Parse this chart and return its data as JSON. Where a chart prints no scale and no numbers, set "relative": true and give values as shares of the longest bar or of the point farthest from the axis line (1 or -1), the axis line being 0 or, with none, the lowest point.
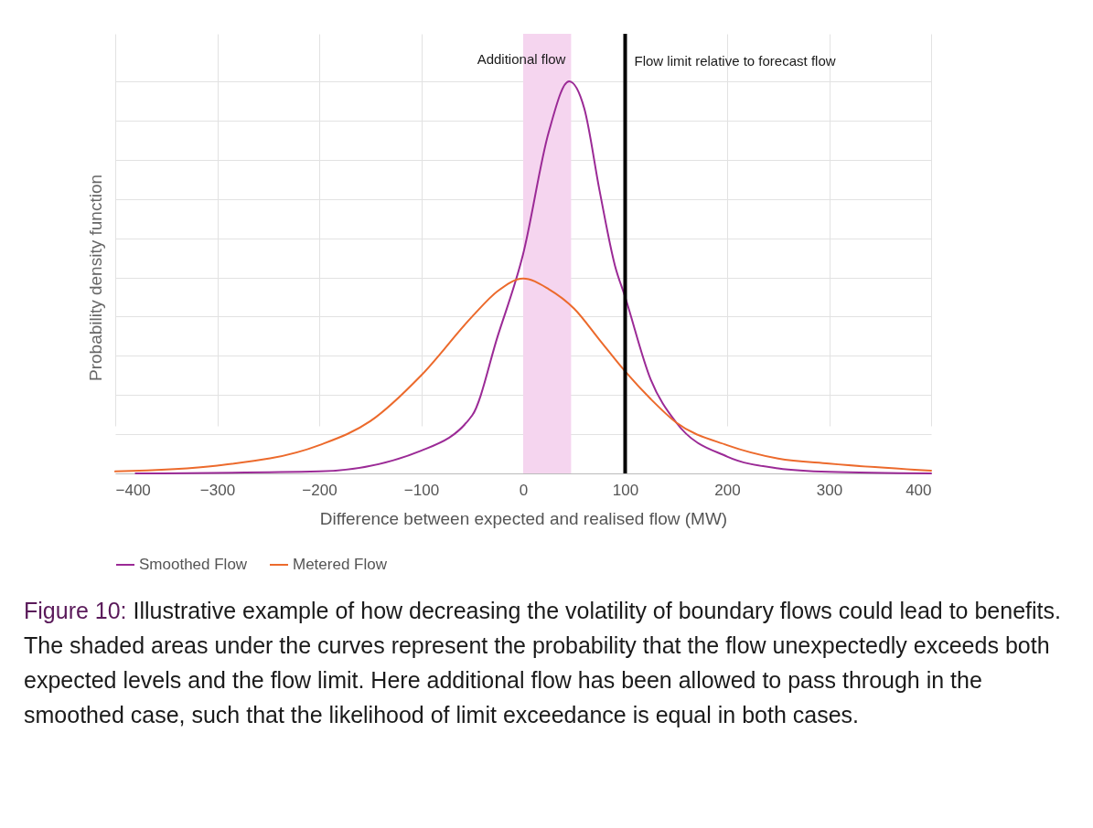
{
  "chart_data": {
    "type": "line",
    "relative": true,
    "xlabel": "Difference between expected and realised flow (MW)",
    "ylabel": "Probability density function",
    "xlim": [
      -400,
      400
    ],
    "xticks": [
      -400,
      -300,
      -200,
      -100,
      0,
      100,
      200,
      300,
      400
    ],
    "grid": true,
    "legend": "bottom",
    "marker": "none",
    "line_style": "solid",
    "series": [
      {
        "name": "Smoothed Flow",
        "color": "#9b2a96",
        "x": [
          -380,
          -200,
          -100,
          -50,
          -25,
          0,
          25,
          45,
          60,
          75,
          90,
          100,
          125,
          150,
          200,
          250,
          300,
          400
        ],
        "values": [
          0,
          0.005,
          0.058,
          0.148,
          0.35,
          0.56,
          0.87,
          1,
          0.93,
          0.72,
          0.53,
          0.45,
          0.24,
          0.13,
          0.043,
          0.013,
          0.004,
          0
        ]
      },
      {
        "name": "Metered Flow",
        "color": "#ec6a2c",
        "x": [
          -400,
          -300,
          -200,
          -150,
          -100,
          -50,
          -25,
          0,
          25,
          50,
          75,
          100,
          125,
          150,
          200,
          250,
          300,
          400
        ],
        "values": [
          0.005,
          0.02,
          0.072,
          0.133,
          0.25,
          0.4,
          0.465,
          0.497,
          0.47,
          0.42,
          0.34,
          0.26,
          0.19,
          0.13,
          0.072,
          0.038,
          0.025,
          0.007
        ]
      }
    ],
    "bands": [
      {
        "axis": "x",
        "from": 0,
        "to": 47,
        "label": "Additional flow",
        "color": "#f5d5ef"
      }
    ],
    "ref_lines": [
      {
        "axis": "x",
        "value": 100,
        "label": "Flow limit relative to forecast flow",
        "color": "#000000",
        "line_style": "solid"
      }
    ],
    "annotations": [
      "Figure 10: Illustrative example of how decreasing the volatility of boundary flows could lead to benefits. The shaded areas under the curves represent the probability that the flow unexpectedly exceeds both expected levels and the flow limit. Here additional flow has been allowed to pass through in the smoothed case, such that the likelihood of limit exceedance is equal in both cases."
    ]
  }
}
